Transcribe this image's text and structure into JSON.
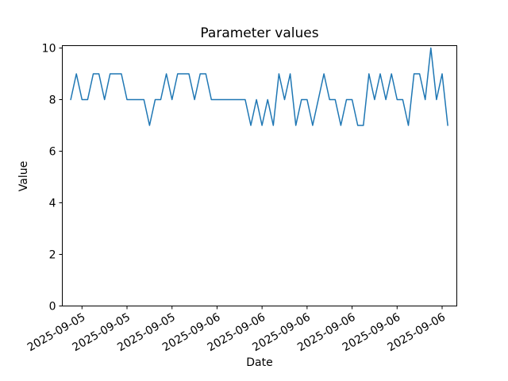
{
  "chart_data": {
    "type": "line",
    "title": "Parameter values",
    "xlabel": "Date",
    "ylabel": "Value",
    "grid": false,
    "legend": null,
    "line_color": "#1f77b4",
    "axes_color": "#000000",
    "background_color": "#ffffff",
    "ylim": [
      0,
      10.2
    ],
    "yticks": [
      0,
      2,
      4,
      6,
      8,
      10
    ],
    "xtick_labels": [
      "2025-09-05",
      "2025-09-05",
      "2025-09-05",
      "2025-09-06",
      "2025-09-06",
      "2025-09-06",
      "2025-09-06",
      "2025-09-06",
      "2025-09-06"
    ],
    "xtick_point_indices": [
      2,
      10,
      18,
      26,
      34,
      42,
      50,
      58,
      66
    ],
    "xtick_label_rotation_deg": 30,
    "num_points": 68,
    "values": [
      8,
      9,
      8,
      8,
      9,
      9,
      8,
      9,
      9,
      9,
      8,
      8,
      8,
      8,
      7,
      8,
      8,
      9,
      8,
      9,
      9,
      9,
      8,
      9,
      9,
      8,
      8,
      8,
      8,
      8,
      8,
      8,
      7,
      8,
      7,
      8,
      7,
      9,
      8,
      9,
      7,
      8,
      8,
      7,
      8,
      9,
      8,
      8,
      7,
      8,
      8,
      7,
      7,
      9,
      8,
      9,
      8,
      9,
      8,
      8,
      7,
      9,
      9,
      8,
      10,
      8,
      9,
      7
    ]
  }
}
